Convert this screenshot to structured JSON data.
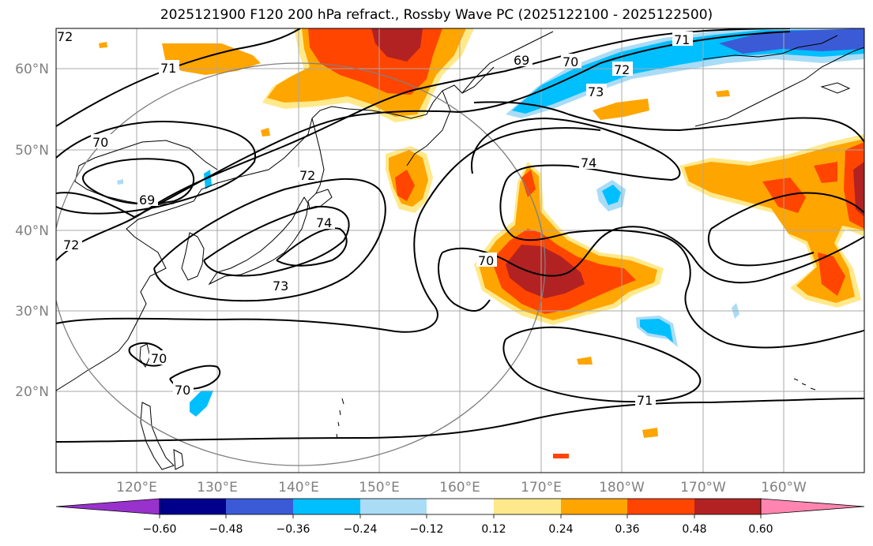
{
  "title": "2025121900 F120 200 hPa refract., Rossby Wave PC (2025122100 - 2025122500)",
  "map": {
    "latitude_labels": [
      "60°N",
      "50°N",
      "40°N",
      "30°N",
      "20°N"
    ],
    "longitude_labels": [
      "120°E",
      "130°E",
      "140°E",
      "150°E",
      "160°E",
      "170°E",
      "180°W",
      "170°W",
      "160°W"
    ],
    "lon_range": [
      "110°E",
      "210°E (150°W)"
    ],
    "lat_range": [
      "10°N",
      "65°N"
    ],
    "gridlines": true,
    "contour_labels": [
      {
        "id": "c1",
        "text": "72"
      },
      {
        "id": "c2",
        "text": "71"
      },
      {
        "id": "c3",
        "text": "70"
      },
      {
        "id": "c4",
        "text": "69"
      },
      {
        "id": "c5",
        "text": "72"
      },
      {
        "id": "c6",
        "text": "72"
      },
      {
        "id": "c7",
        "text": "74"
      },
      {
        "id": "c8",
        "text": "73"
      },
      {
        "id": "c9",
        "text": "69"
      },
      {
        "id": "c10",
        "text": "70"
      },
      {
        "id": "c11",
        "text": "72"
      },
      {
        "id": "c12",
        "text": "73"
      },
      {
        "id": "c13",
        "text": "71"
      },
      {
        "id": "c14",
        "text": "74"
      },
      {
        "id": "c15",
        "text": "70"
      },
      {
        "id": "c16",
        "text": "70"
      },
      {
        "id": "c17",
        "text": "70"
      },
      {
        "id": "c18",
        "text": "71"
      }
    ]
  },
  "colorbar": {
    "colors": [
      "#9932cc",
      "#00008b",
      "#3b5bd6",
      "#00bfff",
      "#aadcf6",
      "#ffffff",
      "#ffffff",
      "#fde98b",
      "#ffa500",
      "#ff4500",
      "#b22222",
      "#ff85b0"
    ],
    "tick_labels": [
      "−0.60",
      "−0.48",
      "−0.36",
      "−0.24",
      "−0.12",
      "0.12",
      "0.24",
      "0.36",
      "0.48",
      "0.60"
    ],
    "extend": "both"
  }
}
